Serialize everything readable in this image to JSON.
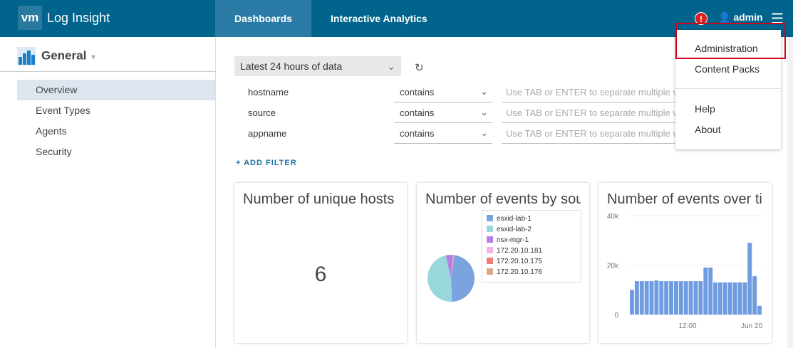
{
  "header": {
    "logo": "vm",
    "app_name": "Log Insight",
    "tabs": [
      {
        "label": "Dashboards",
        "active": true
      },
      {
        "label": "Interactive Analytics",
        "active": false
      }
    ],
    "alert_icon": "!",
    "user": "admin"
  },
  "user_menu": {
    "items": [
      "Administration",
      "Content Packs",
      "Help",
      "About"
    ],
    "highlighted": "Administration"
  },
  "sidebar": {
    "group": "General",
    "items": [
      {
        "label": "Overview",
        "selected": true
      },
      {
        "label": "Event Types"
      },
      {
        "label": "Agents"
      },
      {
        "label": "Security"
      }
    ]
  },
  "filters": {
    "time_range": "Latest 24 hours of data",
    "rows": [
      {
        "field": "hostname",
        "operator": "contains",
        "placeholder": "Use TAB or ENTER to separate multiple values"
      },
      {
        "field": "source",
        "operator": "contains",
        "placeholder": "Use TAB or ENTER to separate multiple values"
      },
      {
        "field": "appname",
        "operator": "contains",
        "placeholder": "Use TAB or ENTER to separate multiple values"
      }
    ],
    "add_filter": "ADD FILTER"
  },
  "widgets": [
    {
      "title": "Number of unique hosts",
      "value": "6"
    },
    {
      "title": "Number of events by source"
    },
    {
      "title": "Number of events over time"
    }
  ],
  "chart_data": [
    {
      "type": "pie",
      "title": "Number of events by source",
      "labels": [
        "esxid-lab-1",
        "esxid-lab-2",
        "nsx-mgr-1",
        "172.20.10.181",
        "172.20.10.175",
        "172.20.10.176"
      ],
      "values": [
        47,
        47,
        5,
        0.4,
        0.3,
        0.3
      ],
      "colors": [
        "#7aa3e0",
        "#98d8dc",
        "#b77ee6",
        "#f1b4e6",
        "#f27b7b",
        "#d6a98a"
      ],
      "legend": "right"
    },
    {
      "type": "bar",
      "title": "Number of events over time",
      "ylim": [
        0,
        40000
      ],
      "yticks": [
        "0",
        "20k",
        "40k"
      ],
      "xticks": [
        "12:00",
        "Jun 20"
      ],
      "values": [
        10000,
        13500,
        13500,
        13500,
        13500,
        13800,
        13500,
        13500,
        13500,
        13500,
        13500,
        13500,
        13500,
        13500,
        13500,
        19000,
        19000,
        13000,
        13000,
        13000,
        13000,
        13000,
        13000,
        13000,
        29000,
        15500,
        3500
      ],
      "color": "#6f9be0"
    }
  ]
}
